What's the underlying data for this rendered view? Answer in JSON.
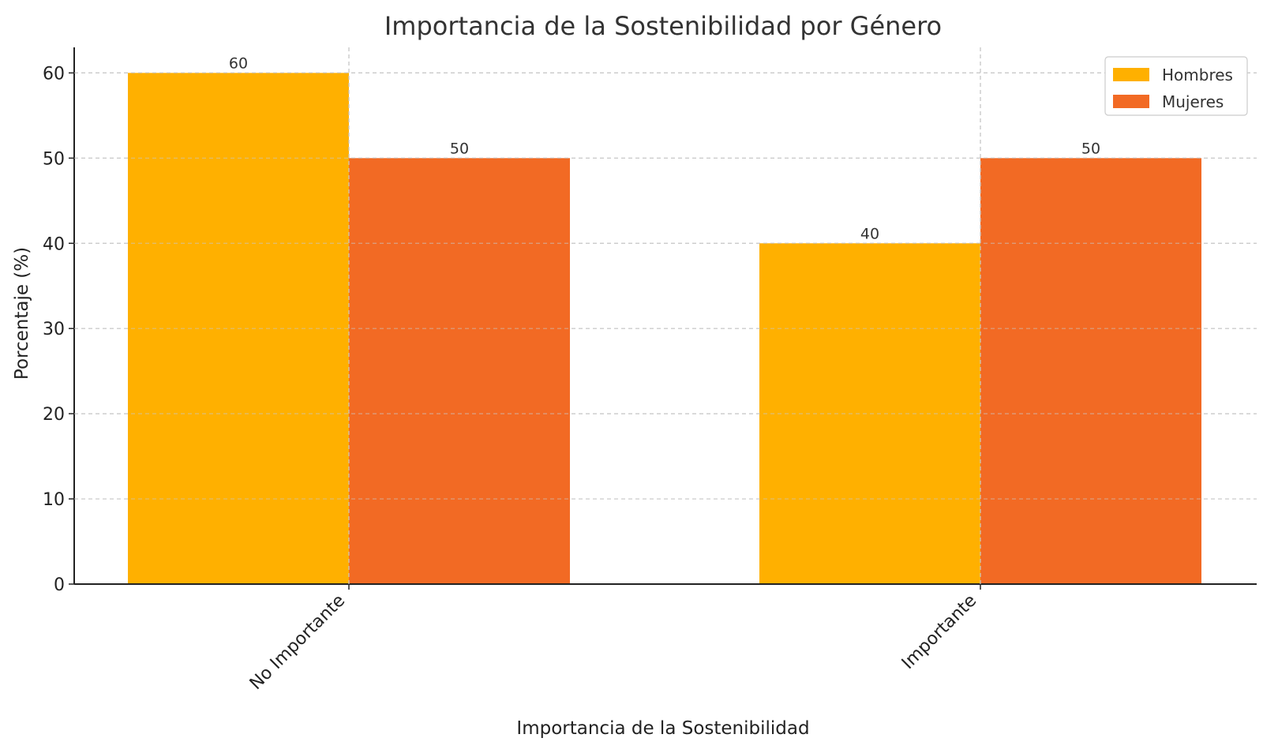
{
  "chart_data": {
    "type": "bar",
    "title": "Importancia de la Sostenibilidad por Género",
    "xlabel": "Importancia de la Sostenibilidad",
    "ylabel": "Porcentaje (%)",
    "categories": [
      "No Importante",
      "Importante"
    ],
    "series": [
      {
        "name": "Hombres",
        "values": [
          60,
          40
        ],
        "color": "#FFB000"
      },
      {
        "name": "Mujeres",
        "values": [
          50,
          50
        ],
        "color": "#F26A24"
      }
    ],
    "ylim": [
      0,
      63
    ],
    "yticks": [
      "0",
      "10",
      "20",
      "30",
      "40",
      "50",
      "60"
    ],
    "grid": true,
    "legend": "top-right",
    "data_labels": true
  }
}
